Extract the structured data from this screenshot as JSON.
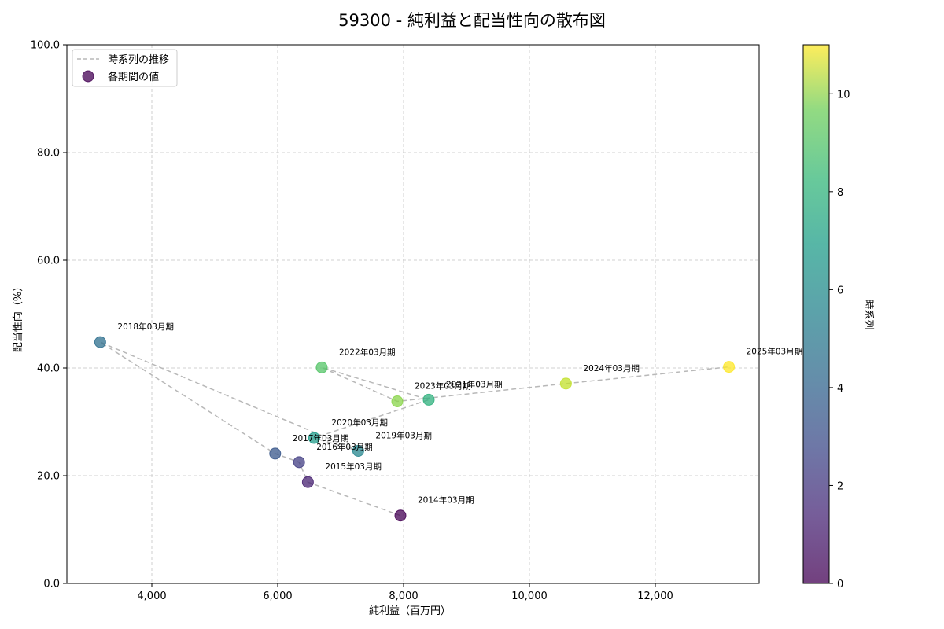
{
  "chart_data": {
    "type": "scatter",
    "title": "59300 - 純利益と配当性向の散布図",
    "xlabel": "純利益（百万円）",
    "ylabel": "配当性向（%）",
    "xlim": [
      2650,
      13650
    ],
    "ylim": [
      0,
      100
    ],
    "x_ticks": [
      4000,
      6000,
      8000,
      10000,
      12000
    ],
    "x_tick_labels": [
      "4,000",
      "6,000",
      "8,000",
      "10,000",
      "12,000"
    ],
    "y_ticks": [
      0,
      20,
      40,
      60,
      80,
      100
    ],
    "y_tick_labels": [
      "0.0",
      "20.0",
      "40.0",
      "60.0",
      "80.0",
      "100.0"
    ],
    "grid": true,
    "points": [
      {
        "label": "2014年03月期",
        "x": 7950,
        "y": 12.6,
        "t": 0
      },
      {
        "label": "2015年03月期",
        "x": 6480,
        "y": 18.8,
        "t": 1
      },
      {
        "label": "2016年03月期",
        "x": 6340,
        "y": 22.5,
        "t": 2
      },
      {
        "label": "2017年03月期",
        "x": 5960,
        "y": 24.1,
        "t": 3
      },
      {
        "label": "2018年03月期",
        "x": 3180,
        "y": 44.8,
        "t": 4
      },
      {
        "label": "2019年03月期",
        "x": 7280,
        "y": 24.6,
        "t": 5
      },
      {
        "label": "2020年03月期",
        "x": 6580,
        "y": 27.0,
        "t": 6
      },
      {
        "label": "2021年03月期",
        "x": 8400,
        "y": 34.1,
        "t": 7
      },
      {
        "label": "2022年03月期",
        "x": 6700,
        "y": 40.1,
        "t": 8
      },
      {
        "label": "2023年03月期",
        "x": 7900,
        "y": 33.8,
        "t": 9
      },
      {
        "label": "2024年03月期",
        "x": 10580,
        "y": 37.1,
        "t": 10
      },
      {
        "label": "2025年03月期",
        "x": 13170,
        "y": 40.2,
        "t": 11
      }
    ],
    "legend": {
      "position": "top-left",
      "entries": [
        {
          "name": "時系列の推移",
          "kind": "line"
        },
        {
          "name": "各期間の値",
          "kind": "marker"
        }
      ]
    },
    "colorbar": {
      "label": "時系列",
      "range": [
        0,
        11
      ],
      "ticks": [
        0,
        2,
        4,
        6,
        8,
        10
      ],
      "tick_labels": [
        "0",
        "2",
        "4",
        "6",
        "8",
        "10"
      ],
      "colormap": "viridis"
    },
    "colors": {
      "trend_line": "#b8b8b8",
      "grid": "#c4c4c4",
      "axis": "#000000"
    }
  }
}
